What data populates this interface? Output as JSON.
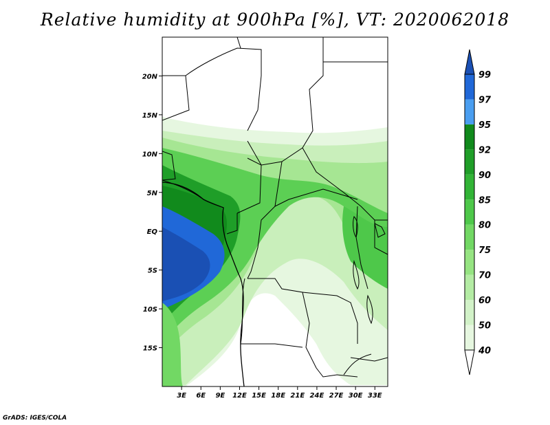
{
  "title": "Relative humidity at 900hPa [%], VT: 2020062018",
  "credit": "GrADS: IGES/COLA",
  "map": {
    "lon_range": [
      0,
      35
    ],
    "lat_range": [
      -20,
      25
    ],
    "lon_ticks": [
      "3E",
      "6E",
      "9E",
      "12E",
      "15E",
      "18E",
      "21E",
      "24E",
      "27E",
      "30E",
      "33E"
    ],
    "lat_ticks": [
      "20N",
      "15N",
      "10N",
      "5N",
      "EQ",
      "5S",
      "10S",
      "15S"
    ]
  },
  "colorbar": {
    "levels": [
      "40",
      "50",
      "60",
      "70",
      "75",
      "80",
      "85",
      "90",
      "92",
      "95",
      "97",
      "99"
    ],
    "colors": [
      "#ffffff",
      "#e6f7e0",
      "#d2f2c8",
      "#b4eca4",
      "#96e482",
      "#72d864",
      "#4ec84a",
      "#32b436",
      "#1f9e28",
      "#118a1c",
      "#4a9ef0",
      "#2068d8",
      "#1a50b4"
    ]
  },
  "legend_title": ""
}
